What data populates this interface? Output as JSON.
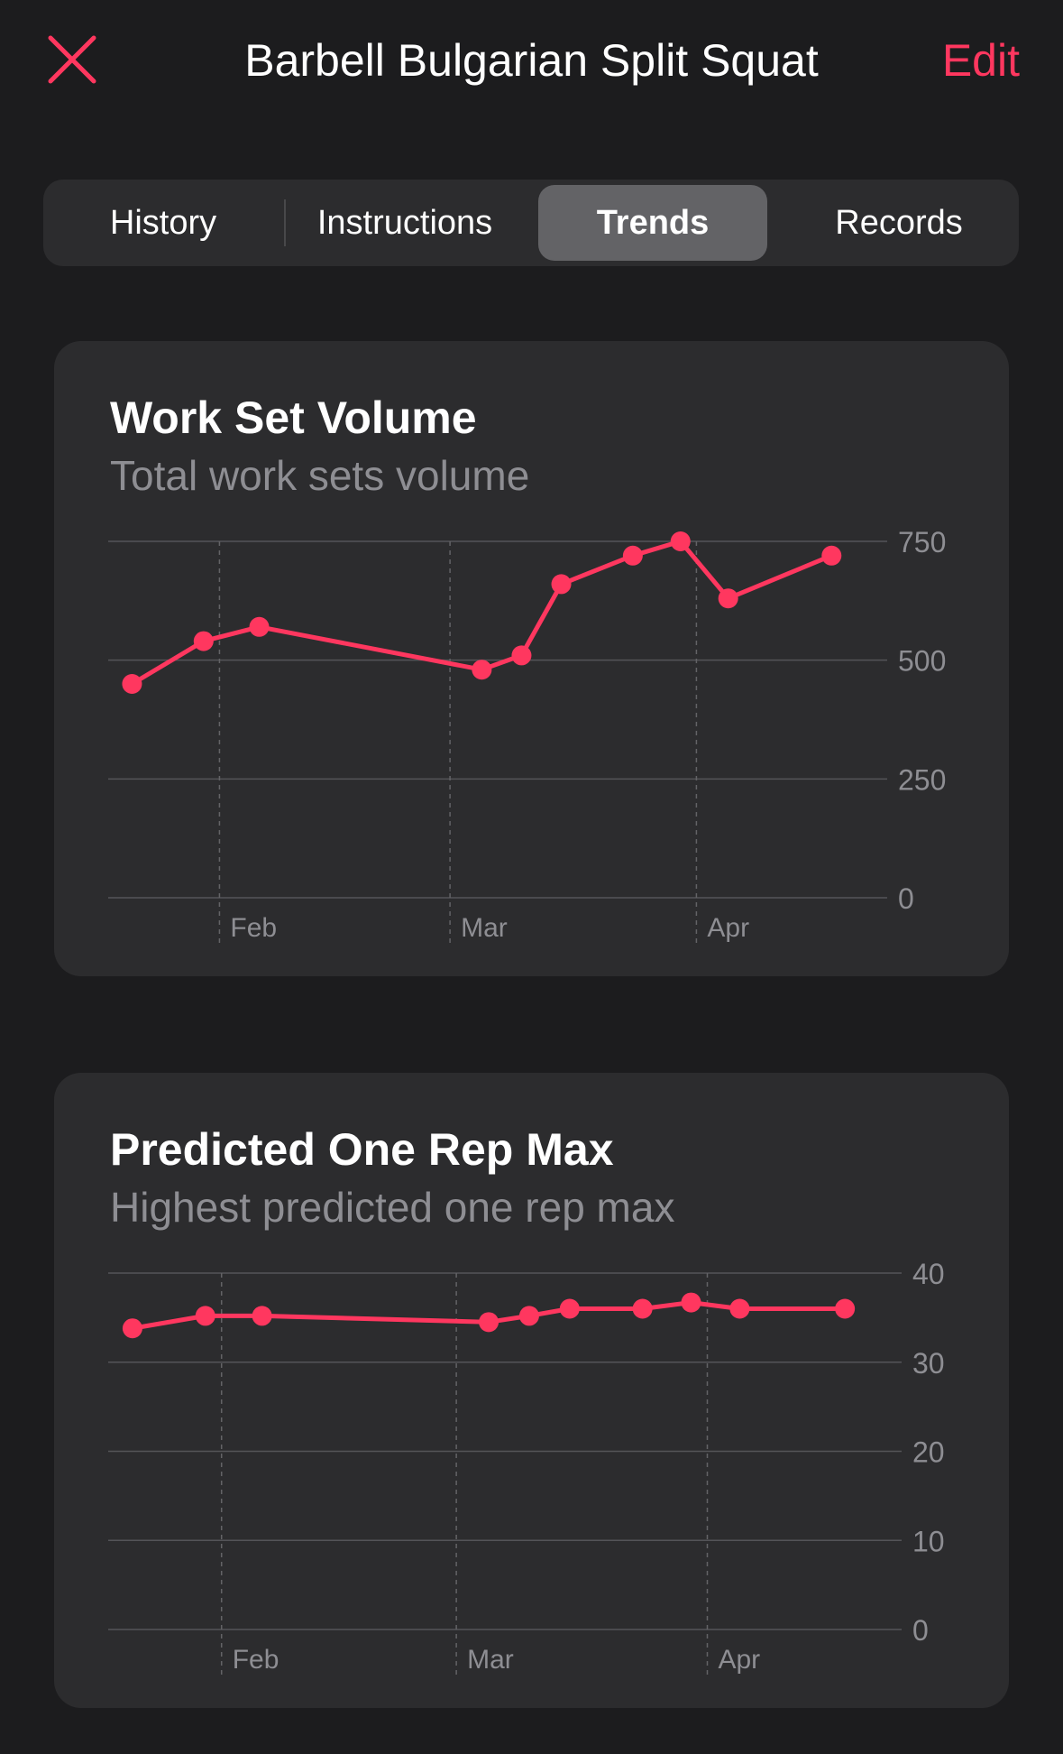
{
  "nav": {
    "title": "Barbell Bulgarian Split Squat",
    "edit_label": "Edit",
    "close_icon": "close-x-icon"
  },
  "tabs": [
    {
      "label": "History",
      "selected": false
    },
    {
      "label": "Instructions",
      "selected": false
    },
    {
      "label": "Trends",
      "selected": true
    },
    {
      "label": "Records",
      "selected": false
    }
  ],
  "colors": {
    "accent": "#ff375f",
    "background": "#1c1c1e",
    "card": "#2c2c2e",
    "selected_tab": "#636366",
    "subtitle": "#8e8e93"
  },
  "cards": [
    {
      "title": "Work Set Volume",
      "subtitle": "Total work sets volume"
    },
    {
      "title": "Predicted One Rep Max",
      "subtitle": "Highest predicted one rep max"
    }
  ],
  "chart_data": [
    {
      "type": "line",
      "title": "Work Set Volume",
      "subtitle": "Total work sets volume",
      "x": [
        "Jan 21",
        "Jan 30",
        "Feb 6",
        "Mar 5",
        "Mar 10",
        "Mar 15",
        "Mar 24",
        "Mar 30",
        "Apr 5",
        "Apr 18"
      ],
      "values": [
        450,
        540,
        570,
        480,
        510,
        660,
        720,
        750,
        630,
        720
      ],
      "month_ticks": [
        {
          "label": "Feb",
          "date": "Feb 1"
        },
        {
          "label": "Mar",
          "date": "Mar 1"
        },
        {
          "label": "Apr",
          "date": "Apr 1"
        }
      ],
      "x_range": [
        "Jan 18",
        "Apr 25"
      ],
      "yticks": [
        0,
        250,
        500,
        750
      ],
      "ylim": [
        0,
        750
      ],
      "grid": true,
      "color": "#ff375f"
    },
    {
      "type": "line",
      "title": "Predicted One Rep Max",
      "subtitle": "Highest predicted one rep max",
      "x": [
        "Jan 21",
        "Jan 30",
        "Feb 6",
        "Mar 5",
        "Mar 10",
        "Mar 15",
        "Mar 24",
        "Mar 30",
        "Apr 5",
        "Apr 18"
      ],
      "values": [
        33.8,
        35.2,
        35.2,
        34.5,
        35.2,
        36,
        36,
        36.7,
        36,
        36
      ],
      "month_ticks": [
        {
          "label": "Feb",
          "date": "Feb 1"
        },
        {
          "label": "Mar",
          "date": "Mar 1"
        },
        {
          "label": "Apr",
          "date": "Apr 1"
        }
      ],
      "x_range": [
        "Jan 18",
        "Apr 25"
      ],
      "yticks": [
        0,
        10,
        20,
        30,
        40
      ],
      "ylim": [
        0,
        40
      ],
      "grid": true,
      "color": "#ff375f"
    }
  ]
}
